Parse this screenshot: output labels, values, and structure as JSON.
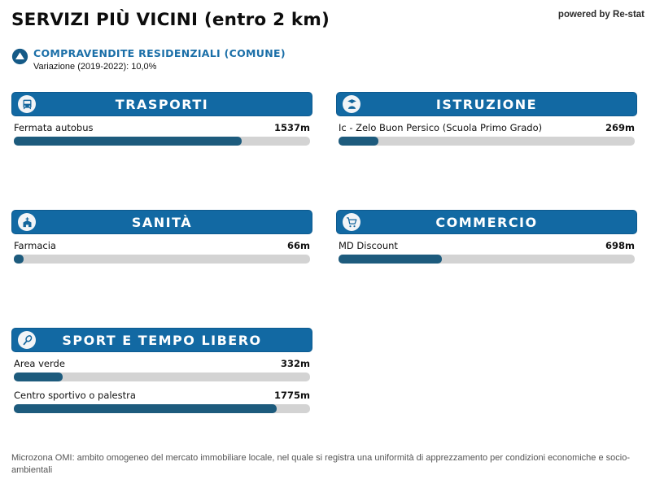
{
  "page": {
    "title": "SERVIZI PIÙ VICINI (entro 2 km)",
    "powered_by": "powered by Re-stat",
    "footnote": "Microzona OMI: ambito omogeneo del mercato immobiliare locale, nel quale si registra una uniformità di apprezzamento per condizioni economiche e socio-ambientali"
  },
  "subtitle": {
    "label": "COMPRAVENDITE RESIDENZIALI (COMUNE)",
    "variation": "Variazione (2019-2022): 10,0%"
  },
  "colors": {
    "header_blue": "#1269a3",
    "header_border": "#0d5a8f",
    "fill_blue": "#1d5b7d",
    "rail_gray": "#d3d3d3",
    "link_blue": "#1b6fa8",
    "icon_navy": "#155a87"
  },
  "icons": {
    "subtitle": "triangle-up-circle-icon",
    "trasporti": "bus-icon",
    "istruzione": "graduate-icon",
    "sanita": "hospital-building-icon",
    "commercio": "shopping-cart-icon",
    "sport": "tennis-racket-icon"
  },
  "chart_data": {
    "type": "bar",
    "title": "SERVIZI PIÙ VICINI (entro 2 km)",
    "unit": "m",
    "xlim": [
      0,
      2000
    ],
    "legend": "none",
    "orientation": "horizontal",
    "groups": [
      {
        "category": "TRASPORTI",
        "items": [
          {
            "label": "Fermata autobus",
            "value": 1537,
            "value_label": "1537m"
          }
        ]
      },
      {
        "category": "ISTRUZIONE",
        "items": [
          {
            "label": "Ic - Zelo Buon Persico (Scuola Primo Grado)",
            "value": 269,
            "value_label": "269m"
          }
        ]
      },
      {
        "category": "SANITÀ",
        "items": [
          {
            "label": "Farmacia",
            "value": 66,
            "value_label": "66m"
          }
        ]
      },
      {
        "category": "COMMERCIO",
        "items": [
          {
            "label": "MD Discount",
            "value": 698,
            "value_label": "698m"
          }
        ]
      },
      {
        "category": "SPORT E TEMPO LIBERO",
        "items": [
          {
            "label": "Area verde",
            "value": 332,
            "value_label": "332m"
          },
          {
            "label": "Centro sportivo o palestra",
            "value": 1775,
            "value_label": "1775m"
          }
        ]
      }
    ]
  }
}
